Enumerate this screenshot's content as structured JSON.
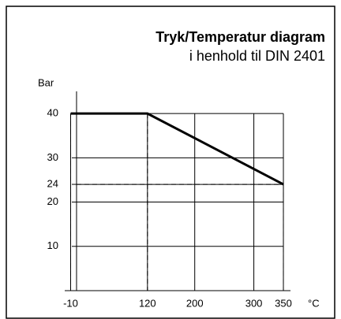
{
  "chart_data": {
    "type": "line",
    "title": "Tryk/Temperatur  diagram",
    "subtitle": "i henhold til DIN 2401",
    "ylabel": "Bar",
    "xlabel": "°C",
    "x": [
      -10,
      120,
      350
    ],
    "series": [
      {
        "values": [
          40,
          40,
          24
        ],
        "color": "#000000"
      }
    ],
    "xlim": [
      -20,
      362
    ],
    "ylim": [
      0,
      45
    ],
    "xticks": [
      -10,
      120,
      200,
      300,
      350
    ],
    "yticks": [
      10,
      20,
      24,
      30,
      40
    ],
    "grid": true
  }
}
